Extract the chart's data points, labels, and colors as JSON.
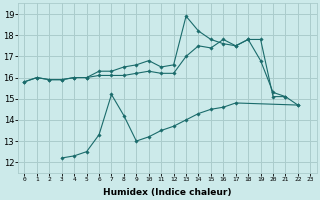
{
  "xlabel": "Humidex (Indice chaleur)",
  "background_color": "#cceaea",
  "grid_color": "#aacccc",
  "line_color": "#1a6b6b",
  "xlim": [
    -0.5,
    23.5
  ],
  "ylim": [
    11.5,
    19.5
  ],
  "xticks": [
    0,
    1,
    2,
    3,
    4,
    5,
    6,
    7,
    8,
    9,
    10,
    11,
    12,
    13,
    14,
    15,
    16,
    17,
    18,
    19,
    20,
    21,
    22,
    23
  ],
  "yticks": [
    12,
    13,
    14,
    15,
    16,
    17,
    18,
    19
  ],
  "line1_x": [
    0,
    1,
    2,
    3,
    4,
    5,
    6,
    7,
    8,
    9,
    10,
    11,
    12,
    13,
    14,
    15,
    16,
    17,
    18,
    19,
    20,
    21
  ],
  "line1_y": [
    15.8,
    16.0,
    15.9,
    15.9,
    16.0,
    16.0,
    16.3,
    16.3,
    16.5,
    16.6,
    16.8,
    16.5,
    16.6,
    18.9,
    18.2,
    17.8,
    17.6,
    17.5,
    17.8,
    17.8,
    15.1,
    15.1
  ],
  "line2_x": [
    0,
    1,
    2,
    3,
    4,
    5,
    6,
    7,
    8,
    9,
    10,
    11,
    12,
    13,
    14,
    15,
    16,
    17,
    18,
    19,
    20,
    21,
    22
  ],
  "line2_y": [
    15.8,
    16.0,
    15.9,
    15.9,
    16.0,
    16.0,
    16.1,
    16.1,
    16.1,
    16.2,
    16.3,
    16.2,
    16.2,
    17.0,
    17.5,
    17.4,
    17.8,
    17.5,
    17.8,
    16.8,
    15.3,
    15.1,
    14.7
  ],
  "line3_x": [
    3,
    4,
    5,
    6,
    7,
    8,
    9,
    10,
    11,
    12,
    13,
    14,
    15,
    16,
    17,
    22
  ],
  "line3_y": [
    12.2,
    12.3,
    12.5,
    13.3,
    15.2,
    14.2,
    13.0,
    13.2,
    13.5,
    13.7,
    14.0,
    14.3,
    14.5,
    14.6,
    14.8,
    14.7
  ]
}
